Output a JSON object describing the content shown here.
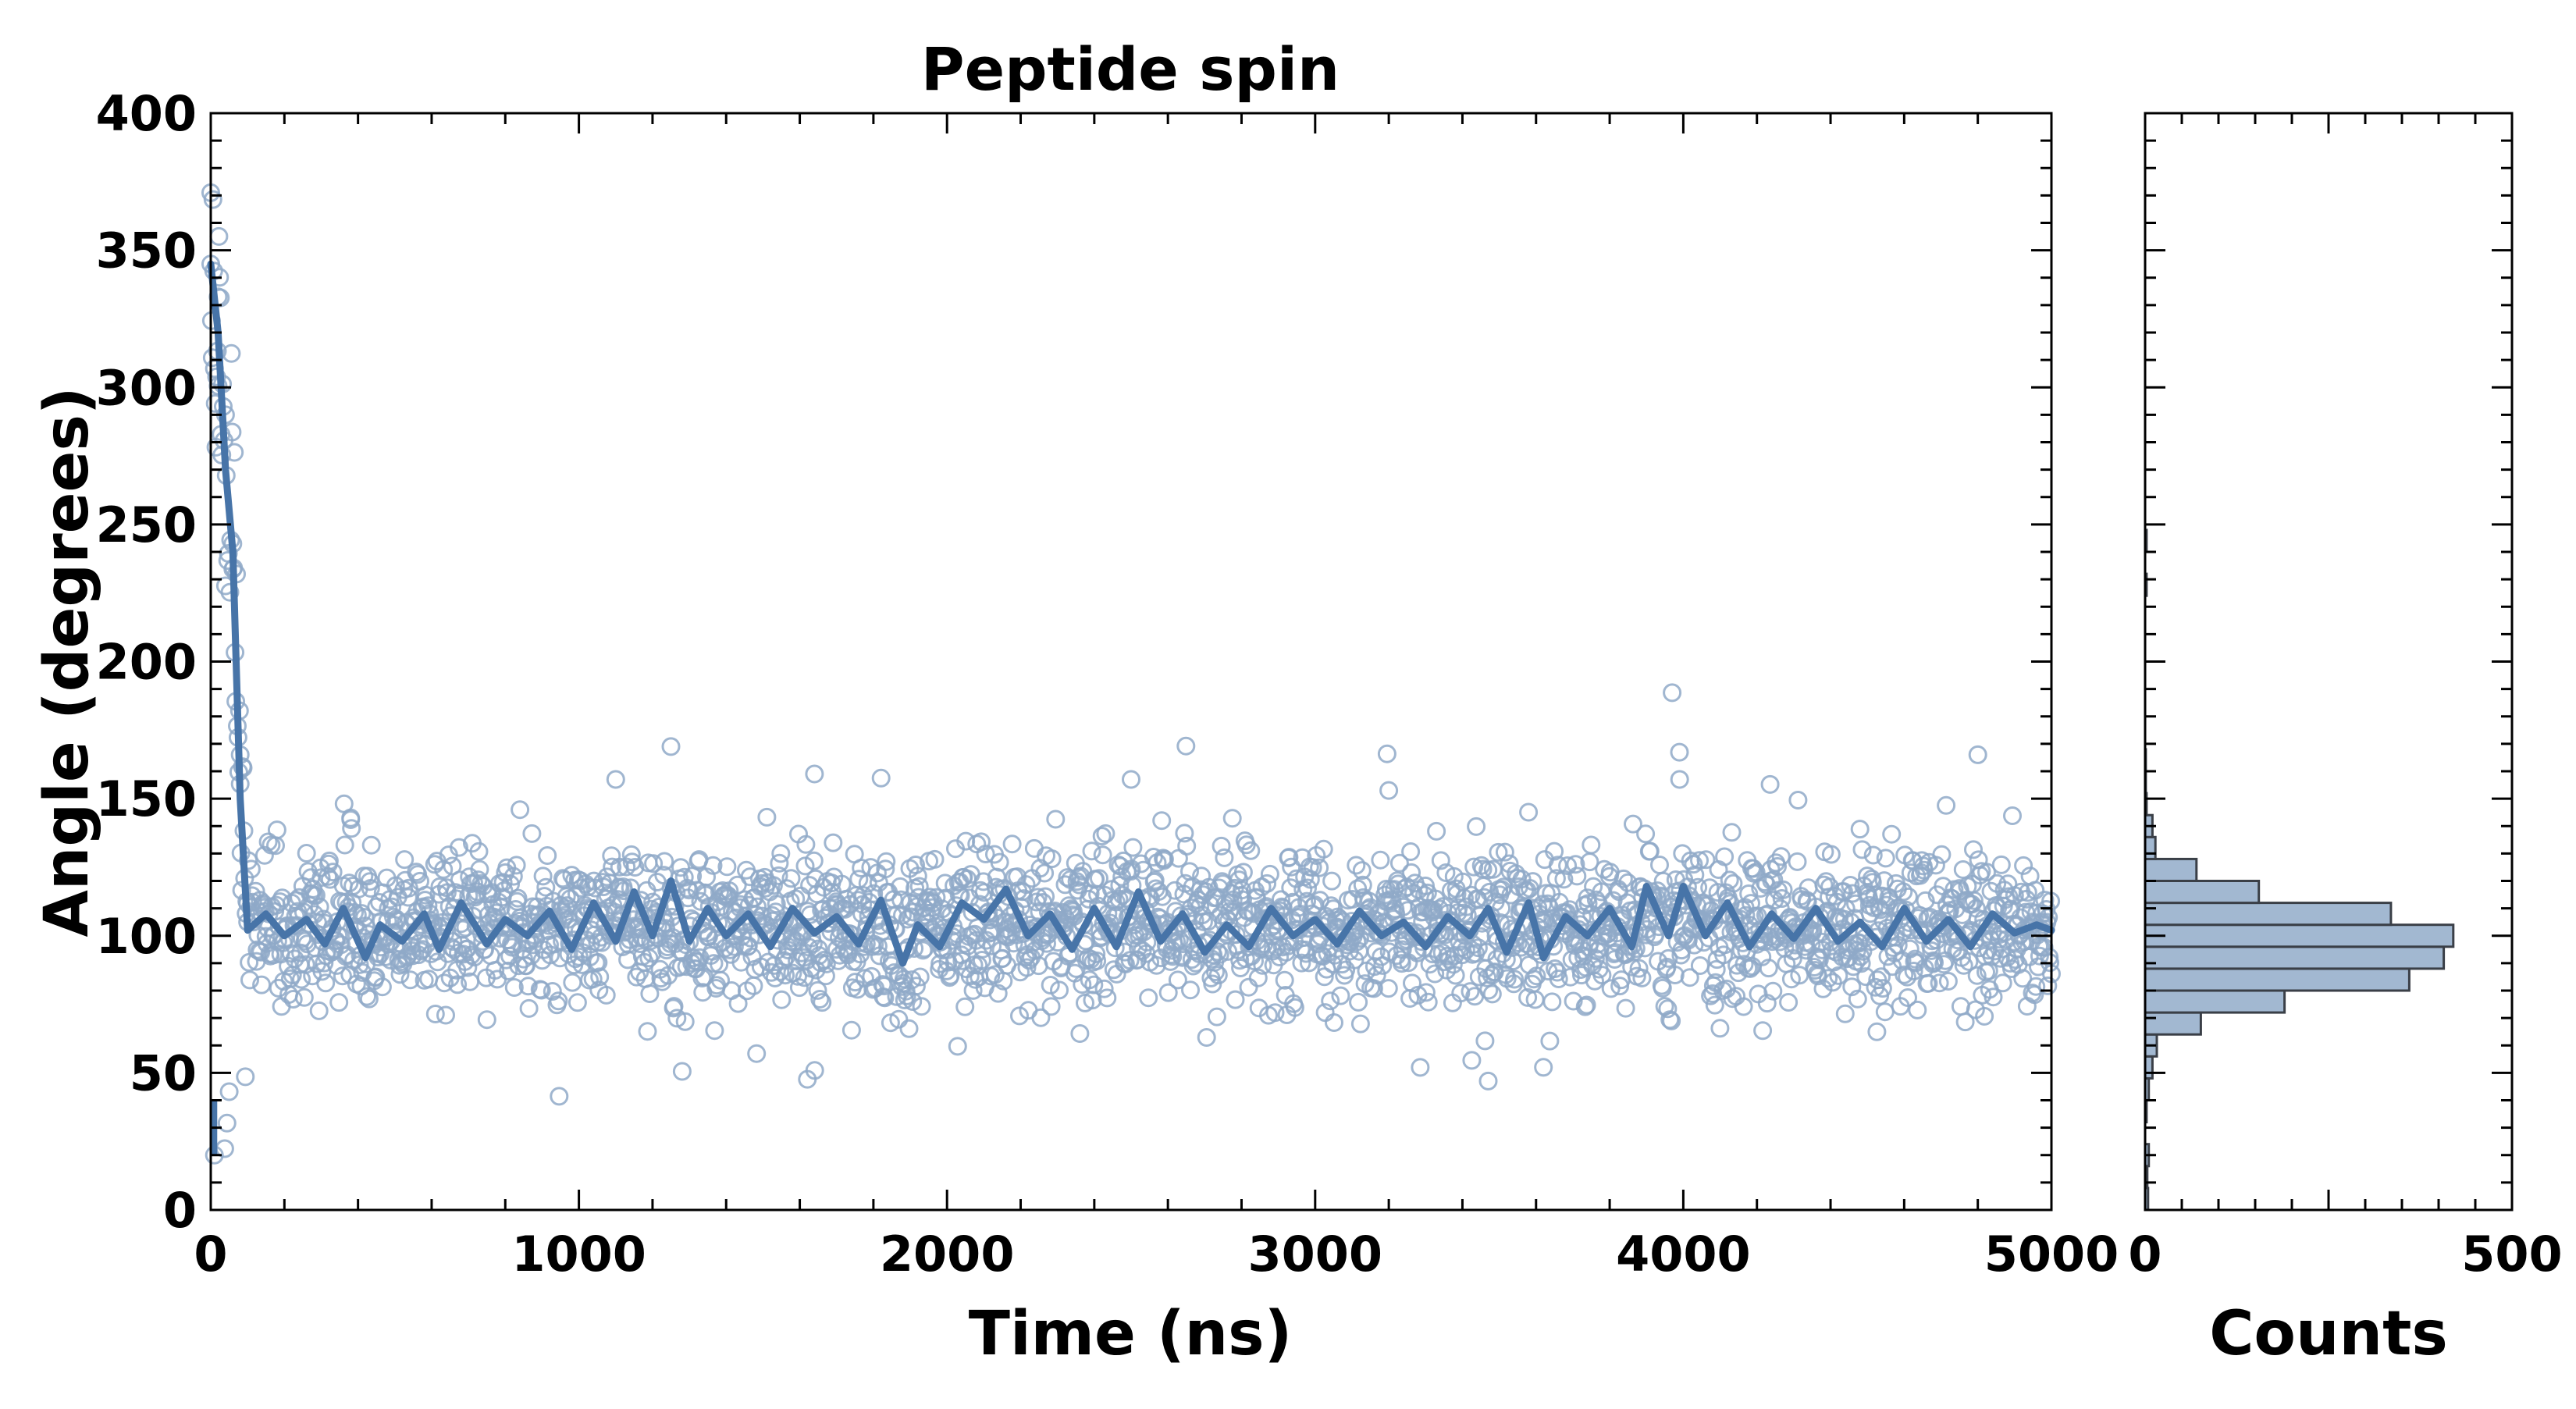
{
  "chart_data": [
    {
      "type": "scatter",
      "title": "Peptide spin",
      "xlabel": "Time (ns)",
      "ylabel": "Angle (degrees)",
      "xlim": [
        0,
        5000
      ],
      "ylim": [
        0,
        400
      ],
      "xticks": [
        "0",
        "1000",
        "2000",
        "3000",
        "4000",
        "5000"
      ],
      "yticks": [
        "0",
        "50",
        "100",
        "150",
        "200",
        "250",
        "300",
        "350",
        "400"
      ],
      "grid": false,
      "marker": "open-circle",
      "n_points": 2500,
      "sample_points": [
        {
          "x": 0,
          "y": 345
        },
        {
          "x": 10,
          "y": 20
        },
        {
          "x": 20,
          "y": 333
        },
        {
          "x": 40,
          "y": 290
        },
        {
          "x": 60,
          "y": 243
        },
        {
          "x": 80,
          "y": 166
        },
        {
          "x": 100,
          "y": 105
        },
        {
          "x": 380,
          "y": 143
        },
        {
          "x": 840,
          "y": 146
        },
        {
          "x": 1100,
          "y": 157
        },
        {
          "x": 1250,
          "y": 169
        },
        {
          "x": 1640,
          "y": 159
        },
        {
          "x": 2500,
          "y": 157
        },
        {
          "x": 3200,
          "y": 153
        },
        {
          "x": 3470,
          "y": 47
        },
        {
          "x": 3620,
          "y": 52
        },
        {
          "x": 3990,
          "y": 157
        },
        {
          "x": 4800,
          "y": 166
        }
      ],
      "moving_average": {
        "x": [
          0,
          20,
          40,
          60,
          80,
          100,
          150,
          200,
          260,
          310,
          360,
          420,
          460,
          520,
          580,
          620,
          680,
          750,
          800,
          860,
          920,
          980,
          1040,
          1100,
          1150,
          1200,
          1250,
          1300,
          1350,
          1400,
          1460,
          1520,
          1580,
          1640,
          1700,
          1760,
          1820,
          1880,
          1920,
          1980,
          2040,
          2100,
          2160,
          2220,
          2280,
          2340,
          2400,
          2460,
          2520,
          2580,
          2640,
          2700,
          2760,
          2820,
          2880,
          2940,
          3000,
          3060,
          3120,
          3180,
          3240,
          3300,
          3360,
          3420,
          3470,
          3520,
          3580,
          3620,
          3680,
          3740,
          3800,
          3860,
          3900,
          3960,
          4000,
          4060,
          4120,
          4180,
          4240,
          4300,
          4360,
          4420,
          4480,
          4540,
          4600,
          4660,
          4720,
          4780,
          4840,
          4900,
          4960,
          5000
        ],
        "y": [
          345,
          320,
          270,
          240,
          150,
          102,
          108,
          100,
          106,
          97,
          110,
          92,
          104,
          98,
          108,
          95,
          112,
          97,
          106,
          100,
          109,
          95,
          112,
          98,
          116,
          100,
          120,
          98,
          110,
          100,
          108,
          96,
          110,
          101,
          107,
          97,
          113,
          90,
          104,
          96,
          112,
          106,
          117,
          100,
          108,
          95,
          110,
          96,
          116,
          98,
          108,
          94,
          104,
          96,
          110,
          100,
          106,
          97,
          109,
          100,
          105,
          96,
          107,
          100,
          110,
          94,
          112,
          92,
          107,
          100,
          110,
          96,
          118,
          100,
          118,
          100,
          112,
          96,
          108,
          99,
          110,
          98,
          105,
          96,
          110,
          98,
          106,
          96,
          108,
          101,
          104,
          102
        ]
      }
    },
    {
      "type": "bar",
      "orientation": "horizontal",
      "xlabel": "Counts",
      "ylabel": "",
      "xlim": [
        0,
        500
      ],
      "ylim": [
        0,
        400
      ],
      "xticks": [
        "0",
        "500"
      ],
      "bins": [
        0,
        8,
        16,
        24,
        32,
        40,
        48,
        56,
        64,
        72,
        80,
        88,
        96,
        104,
        112,
        120,
        128,
        136,
        144,
        152,
        160,
        168,
        176,
        184,
        192,
        200,
        208,
        216,
        224,
        232,
        240,
        248
      ],
      "counts": [
        4,
        3,
        5,
        0,
        2,
        5,
        10,
        16,
        76,
        190,
        360,
        407,
        420,
        335,
        155,
        70,
        14,
        10,
        2,
        1,
        1,
        0,
        0,
        0,
        0,
        0,
        0,
        0,
        2,
        0,
        2
      ]
    }
  ]
}
